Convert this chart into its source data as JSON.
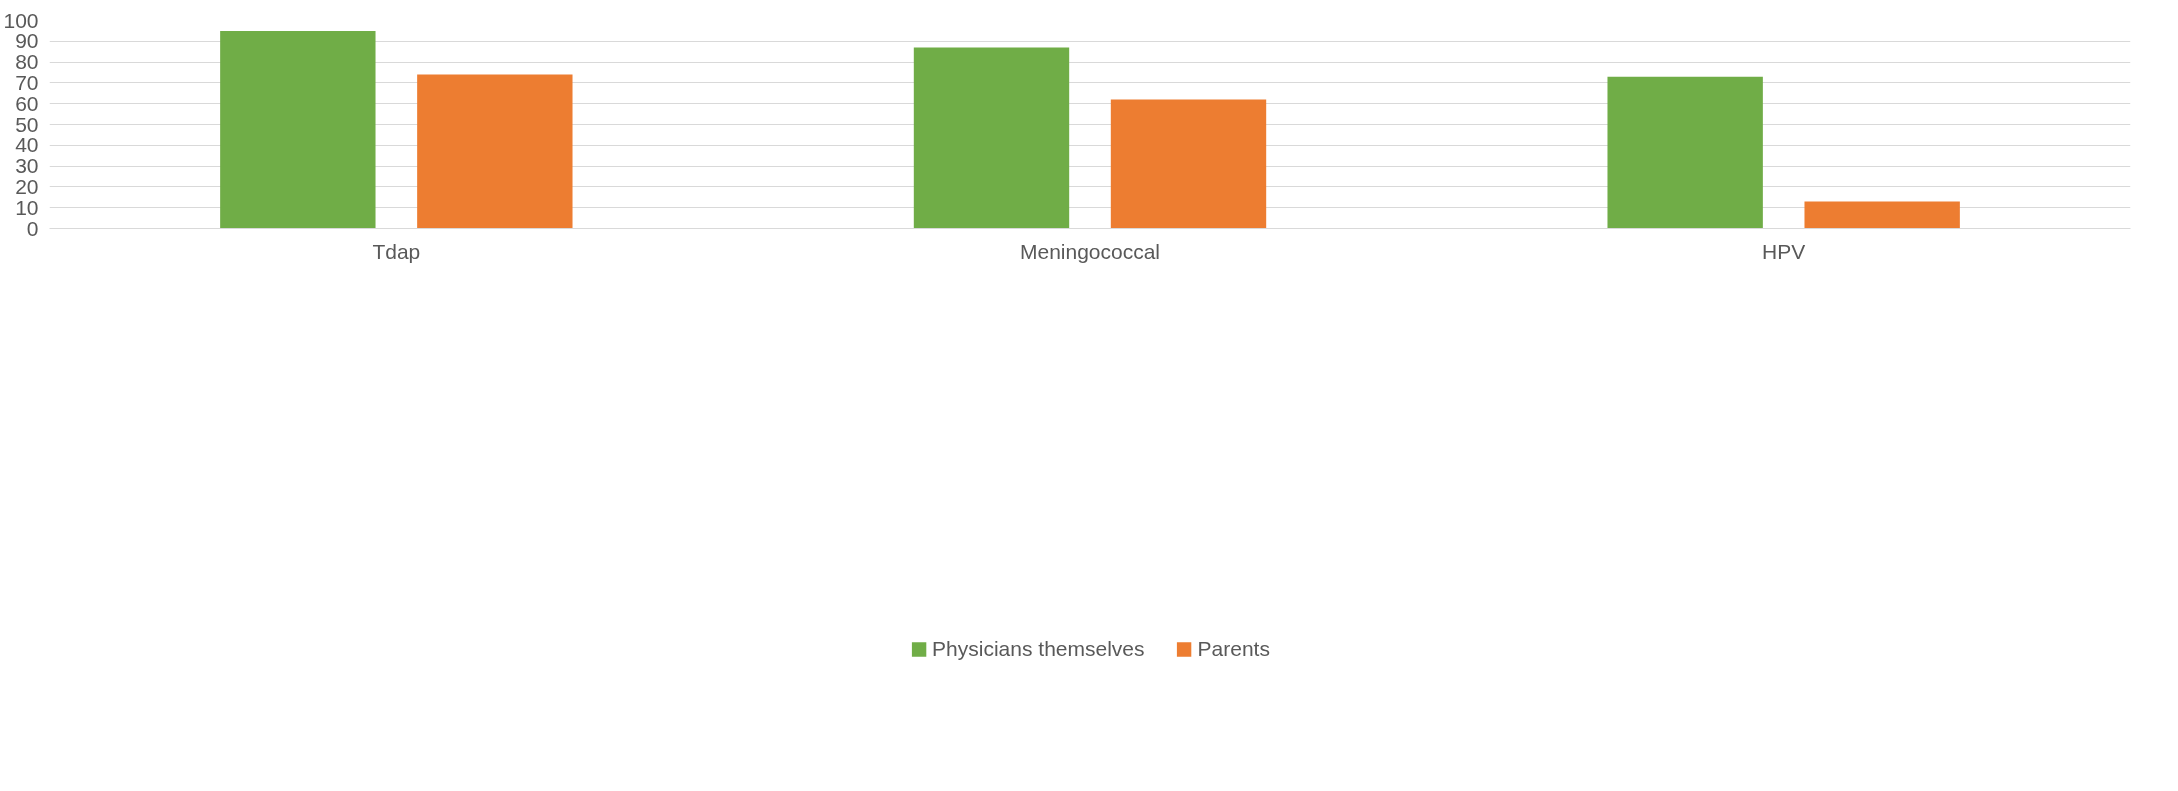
{
  "chart_data": {
    "type": "bar",
    "categories": [
      "Tdap",
      "Meningococcal",
      "HPV"
    ],
    "series": [
      {
        "name": "Physicians themselves",
        "color": "#70ad47",
        "values": [
          95,
          87,
          73
        ]
      },
      {
        "name": "Parents",
        "color": "#ed7d31",
        "values": [
          74,
          62,
          13
        ]
      }
    ],
    "ylim": [
      0,
      100
    ],
    "yticks": [
      0,
      10,
      20,
      30,
      40,
      50,
      60,
      70,
      80,
      90,
      100
    ],
    "grid": "y",
    "legend": "bottom"
  }
}
